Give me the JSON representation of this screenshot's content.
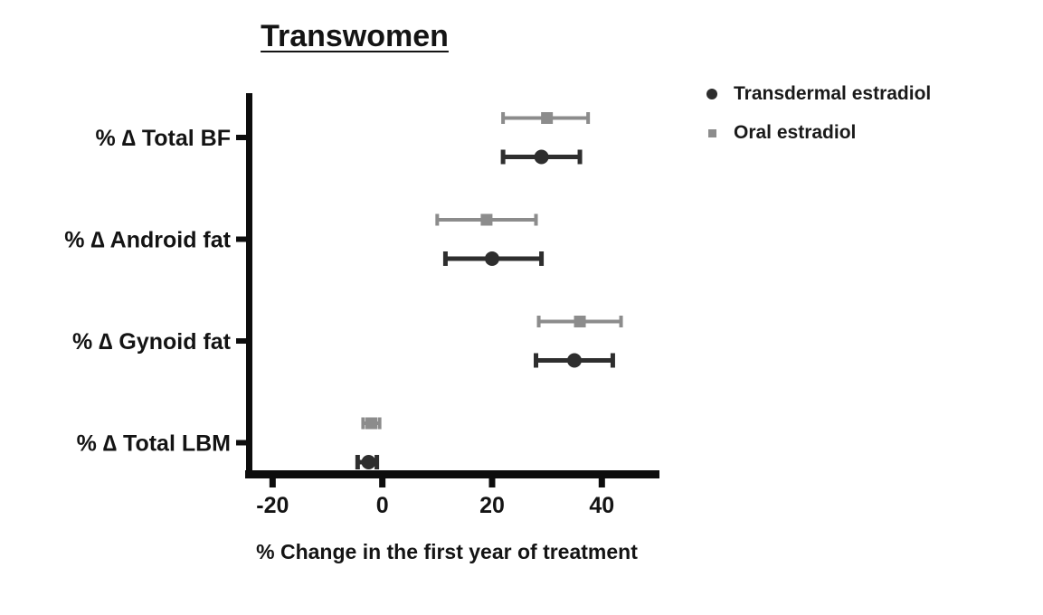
{
  "chart_data": {
    "type": "scatter",
    "variant": "horizontal-dot-plot-with-error-bars",
    "title": "Transwomen",
    "categories": [
      "% ∆ Total BF",
      "% ∆ Android fat",
      "% ∆ Gynoid fat",
      "% ∆ Total LBM"
    ],
    "series": [
      {
        "name": "Transdermal estradiol",
        "marker": "circle",
        "color": "#2e2e2e",
        "values": [
          {
            "category": "% ∆ Total BF",
            "mean": 29,
            "lo": 22,
            "hi": 36
          },
          {
            "category": "% ∆ Android fat",
            "mean": 20,
            "lo": 11.5,
            "hi": 29
          },
          {
            "category": "% ∆ Gynoid fat",
            "mean": 35,
            "lo": 28,
            "hi": 42
          },
          {
            "category": "% ∆ Total LBM",
            "mean": -2.5,
            "lo": -4.5,
            "hi": -1
          }
        ]
      },
      {
        "name": "Oral estradiol",
        "marker": "square",
        "color": "#8c8c8c",
        "values": [
          {
            "category": "% ∆ Total BF",
            "mean": 30,
            "lo": 22,
            "hi": 37.5
          },
          {
            "category": "% ∆ Android fat",
            "mean": 19,
            "lo": 10,
            "hi": 28
          },
          {
            "category": "% ∆ Gynoid fat",
            "mean": 36,
            "lo": 28.5,
            "hi": 43.5
          },
          {
            "category": "% ∆ Total LBM",
            "mean": -2,
            "lo": -3.5,
            "hi": -0.5
          }
        ]
      }
    ],
    "xlabel": "% Change in the first year of treatment",
    "ylabel": "",
    "xticks": [
      -20,
      0,
      20,
      40
    ],
    "xlim": [
      -25,
      50.5
    ],
    "grid": false,
    "legend_position": "top-right",
    "axis_color": "#0d0d0d",
    "text_color": "#141414",
    "background_color": "#ffffff"
  }
}
